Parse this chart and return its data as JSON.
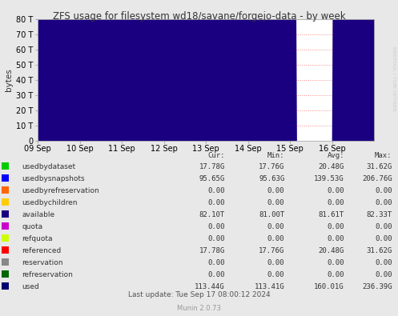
{
  "title": "ZFS usage for filesystem wd18/savane/forgejo-data - by week",
  "ylabel": "bytes",
  "background_color": "#e8e8e8",
  "plot_bg_color": "#ffffff",
  "grid_color": "#ff8888",
  "x_labels": [
    "09 Sep",
    "10 Sep",
    "11 Sep",
    "12 Sep",
    "13 Sep",
    "14 Sep",
    "15 Sep",
    "16 Sep"
  ],
  "y_values": [
    0,
    10,
    20,
    30,
    40,
    50,
    60,
    70,
    80
  ],
  "ylim": [
    0,
    80
  ],
  "rotated_text": "RRDTOOL / TOBI OETIKER",
  "legend_entries": [
    {
      "label": "usedbydataset",
      "color": "#00cc00"
    },
    {
      "label": "usedbysnapshots",
      "color": "#0000ff"
    },
    {
      "label": "usedbyrefreservation",
      "color": "#ff6600"
    },
    {
      "label": "usedbychildren",
      "color": "#ffcc00"
    },
    {
      "label": "available",
      "color": "#1a0080"
    },
    {
      "label": "quota",
      "color": "#cc00cc"
    },
    {
      "label": "refquota",
      "color": "#ccff00"
    },
    {
      "label": "referenced",
      "color": "#ff0000"
    },
    {
      "label": "reservation",
      "color": "#888888"
    },
    {
      "label": "refreservation",
      "color": "#006600"
    },
    {
      "label": "used",
      "color": "#00006e"
    }
  ],
  "table_headers": [
    "Cur:",
    "Min:",
    "Avg:",
    "Max:"
  ],
  "table_data": [
    [
      "17.78G",
      "17.76G",
      "20.48G",
      "31.62G"
    ],
    [
      "95.65G",
      "95.63G",
      "139.53G",
      "206.76G"
    ],
    [
      "0.00",
      "0.00",
      "0.00",
      "0.00"
    ],
    [
      "0.00",
      "0.00",
      "0.00",
      "0.00"
    ],
    [
      "82.10T",
      "81.00T",
      "81.61T",
      "82.33T"
    ],
    [
      "0.00",
      "0.00",
      "0.00",
      "0.00"
    ],
    [
      "0.00",
      "0.00",
      "0.00",
      "0.00"
    ],
    [
      "17.78G",
      "17.76G",
      "20.48G",
      "31.62G"
    ],
    [
      "0.00",
      "0.00",
      "0.00",
      "0.00"
    ],
    [
      "0.00",
      "0.00",
      "0.00",
      "0.00"
    ],
    [
      "113.44G",
      "113.41G",
      "160.01G",
      "236.39G"
    ]
  ],
  "last_update": "Last update: Tue Sep 17 08:00:12 2024",
  "munin_version": "Munin 2.0.73",
  "available_fill_color": "#1a0080"
}
